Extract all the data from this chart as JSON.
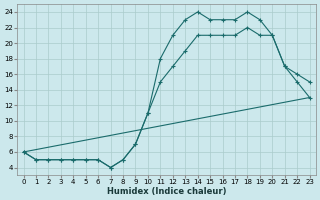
{
  "xlabel": "Humidex (Indice chaleur)",
  "bg_color": "#cce8ec",
  "grid_color": "#aacccc",
  "line_color": "#1a6b6b",
  "xlim": [
    0,
    23
  ],
  "ylim": [
    3,
    25
  ],
  "xticks": [
    0,
    1,
    2,
    3,
    4,
    5,
    6,
    7,
    8,
    9,
    10,
    11,
    12,
    13,
    14,
    15,
    16,
    17,
    18,
    19,
    20,
    21,
    22,
    23
  ],
  "yticks": [
    4,
    6,
    8,
    10,
    12,
    14,
    16,
    18,
    20,
    22,
    24
  ],
  "series": [
    {
      "x": [
        0,
        1,
        2,
        3,
        4,
        5,
        6,
        7,
        8,
        9,
        10,
        11,
        12,
        13,
        14,
        15,
        16,
        17,
        18,
        19,
        20,
        21,
        22,
        23
      ],
      "y": [
        6,
        5,
        5,
        5,
        5,
        5,
        5,
        4,
        5,
        7,
        11,
        18,
        21,
        23,
        24,
        23,
        23,
        23,
        24,
        23,
        21,
        17,
        16,
        15
      ],
      "marker": true
    },
    {
      "x": [
        0,
        23
      ],
      "y": [
        6,
        13
      ],
      "marker": false
    },
    {
      "x": [
        0,
        1,
        2,
        3,
        4,
        5,
        6,
        7,
        8,
        9,
        10,
        11,
        12,
        13,
        14,
        15,
        16,
        17,
        18,
        19,
        20,
        21,
        22,
        23
      ],
      "y": [
        6,
        5,
        5,
        5,
        5,
        5,
        5,
        4,
        5,
        7,
        11,
        15,
        17,
        19,
        21,
        21,
        21,
        21,
        22,
        21,
        21,
        17,
        15,
        13
      ],
      "marker": true
    }
  ]
}
